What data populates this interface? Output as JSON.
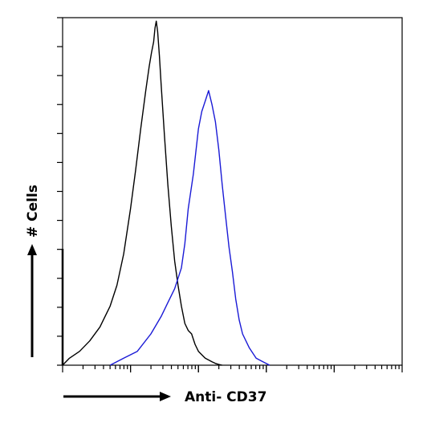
{
  "chart_data": {
    "type": "line",
    "title": "",
    "xlabel": "Anti- CD37",
    "ylabel": "# Cells",
    "xlim": [
      0,
      1
    ],
    "ylim": [
      0,
      1
    ],
    "xscale": "log",
    "grid": false,
    "legend": "none",
    "series": [
      {
        "color": "#000000",
        "x": [
          0.0,
          0.02,
          0.05,
          0.08,
          0.11,
          0.14,
          0.16,
          0.18,
          0.2,
          0.215,
          0.23,
          0.245,
          0.255,
          0.262,
          0.268,
          0.272,
          0.276,
          0.28,
          0.285,
          0.29,
          0.3,
          0.31,
          0.32,
          0.33,
          0.34,
          0.35,
          0.36,
          0.37,
          0.38,
          0.39,
          0.4,
          0.41,
          0.42,
          0.43,
          0.44,
          0.45,
          0.46,
          0.47
        ],
        "values": [
          0.0,
          0.02,
          0.04,
          0.07,
          0.11,
          0.17,
          0.23,
          0.32,
          0.45,
          0.56,
          0.68,
          0.79,
          0.86,
          0.9,
          0.93,
          0.97,
          0.99,
          0.96,
          0.89,
          0.81,
          0.66,
          0.52,
          0.4,
          0.3,
          0.23,
          0.17,
          0.12,
          0.1,
          0.09,
          0.06,
          0.04,
          0.03,
          0.02,
          0.015,
          0.01,
          0.005,
          0.002,
          0.0
        ]
      },
      {
        "color": "#1a1ad6",
        "x": [
          0.14,
          0.18,
          0.22,
          0.26,
          0.29,
          0.31,
          0.33,
          0.35,
          0.36,
          0.37,
          0.385,
          0.4,
          0.41,
          0.42,
          0.43,
          0.44,
          0.45,
          0.46,
          0.47,
          0.48,
          0.49,
          0.5,
          0.51,
          0.52,
          0.53,
          0.55,
          0.57,
          0.59,
          0.61
        ],
        "values": [
          0.0,
          0.02,
          0.04,
          0.09,
          0.14,
          0.18,
          0.22,
          0.28,
          0.35,
          0.45,
          0.55,
          0.68,
          0.73,
          0.76,
          0.79,
          0.75,
          0.7,
          0.62,
          0.52,
          0.43,
          0.34,
          0.27,
          0.19,
          0.13,
          0.09,
          0.05,
          0.02,
          0.01,
          0.0
        ]
      }
    ]
  }
}
